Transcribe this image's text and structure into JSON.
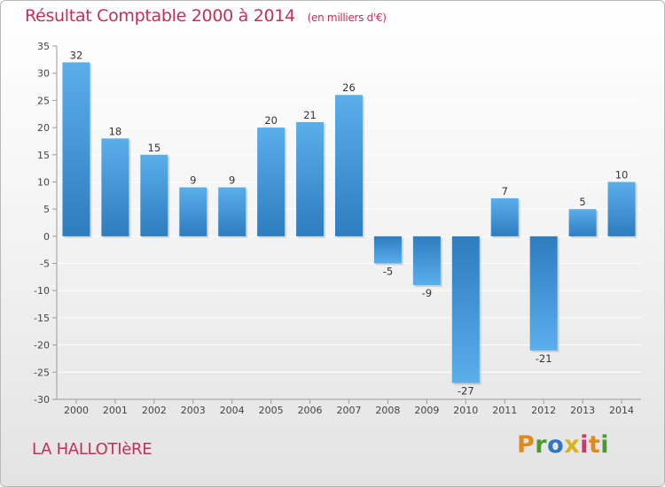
{
  "header": {
    "title": "Résultat Comptable 2000 à 2014",
    "unit": "(en milliers d'€)"
  },
  "footer": {
    "commune": "LA HALLOTIèRE",
    "logo_letters": [
      "P",
      "r",
      "o",
      "x",
      "i",
      "t",
      "i"
    ]
  },
  "colors": {
    "title": "#c0305a",
    "bar_light": "#5aaeea",
    "bar_dark": "#2e7dbf",
    "grid": "#ffffff",
    "axis": "#9a9a9a"
  },
  "chart_data": {
    "type": "bar",
    "title": "Résultat Comptable 2000 à 2014",
    "xlabel": "",
    "ylabel": "",
    "categories": [
      "2000",
      "2001",
      "2002",
      "2003",
      "2004",
      "2005",
      "2006",
      "2007",
      "2008",
      "2009",
      "2010",
      "2011",
      "2012",
      "2013",
      "2014"
    ],
    "values": [
      32,
      18,
      15,
      9,
      9,
      20,
      21,
      26,
      -5,
      -9,
      -27,
      7,
      -21,
      5,
      10
    ],
    "ylim": [
      -30,
      35
    ],
    "yticks": [
      35,
      30,
      25,
      20,
      15,
      10,
      5,
      0,
      -5,
      -10,
      -15,
      -20,
      -25,
      -30
    ],
    "grid": true
  }
}
